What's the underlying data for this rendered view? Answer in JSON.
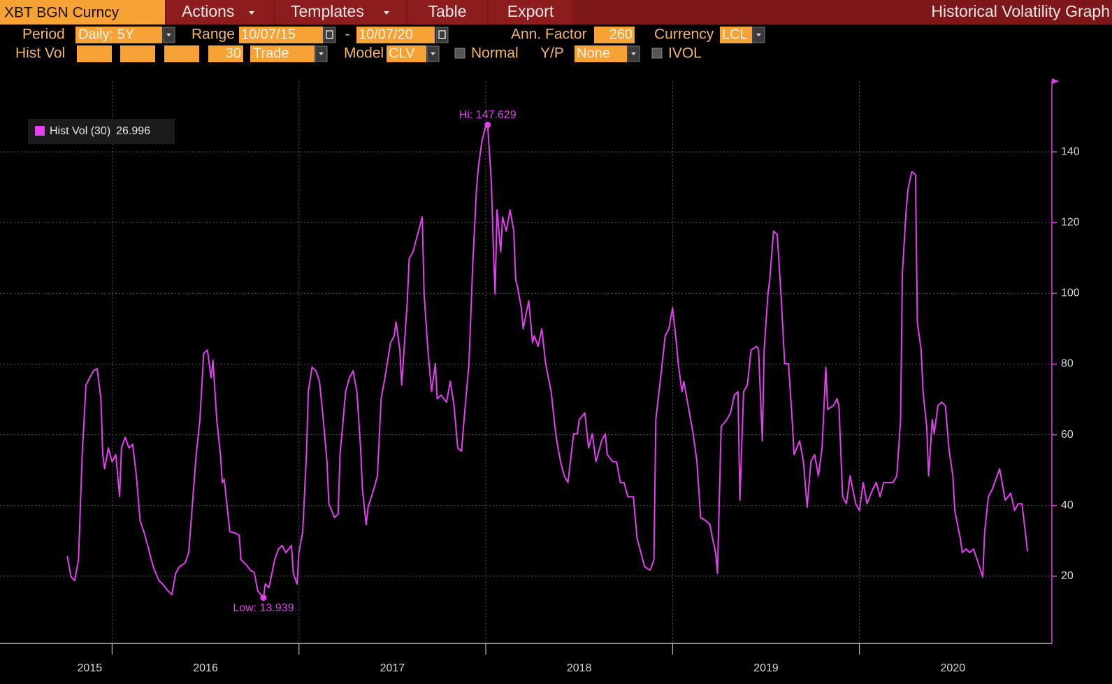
{
  "toolbar": {
    "security": "XBT BGN Curncy",
    "menus": [
      "Actions",
      "Templates",
      "Table",
      "Export"
    ],
    "screen_title": "Historical Volatility Graph"
  },
  "settings": {
    "period_label": "Period",
    "period": "Daily: 5Y",
    "range_label": "Range",
    "range_start": "10/07/15",
    "range_separator": "-",
    "range_end": "10/07/20",
    "ann_factor_label": "Ann. Factor",
    "ann_factor": 260,
    "currency_label": "Currency",
    "currency": "LCL",
    "hist_vol_label": "Hist Vol",
    "hist_vol_window": 30,
    "price_type": "Trade",
    "model_label": "Model",
    "model": "CLV",
    "normal_label": "Normal",
    "yp_label": "Y/P",
    "yp": "None",
    "ivol_label": "IVOL"
  },
  "chart_data": {
    "type": "line",
    "x": [
      2015.76,
      2015.78,
      2015.8,
      2015.82,
      2015.84,
      2015.86,
      2015.88,
      2015.9,
      2015.92,
      2015.94,
      2015.95,
      2015.96,
      2015.98,
      2016.0,
      2016.02,
      2016.04,
      2016.05,
      2016.07,
      2016.09,
      2016.11,
      2016.13,
      2016.15,
      2016.17,
      2016.19,
      2016.22,
      2016.25,
      2016.27,
      2016.3,
      2016.32,
      2016.34,
      2016.36,
      2016.39,
      2016.41,
      2016.45,
      2016.47,
      2016.49,
      2016.51,
      2016.53,
      2016.54,
      2016.56,
      2016.58,
      2016.59,
      2016.6,
      2016.62,
      2016.63,
      2016.66,
      2016.68,
      2016.69,
      2016.72,
      2016.74,
      2016.76,
      2016.78,
      2016.81,
      2016.82,
      2016.84,
      2016.87,
      2016.89,
      2016.91,
      2016.93,
      2016.96,
      2016.97,
      2016.99,
      2017.0,
      2017.02,
      2017.04,
      2017.05,
      2017.07,
      2017.09,
      2017.11,
      2017.13,
      2017.15,
      2017.16,
      2017.19,
      2017.21,
      2017.22,
      2017.25,
      2017.27,
      2017.29,
      2017.31,
      2017.33,
      2017.34,
      2017.36,
      2017.37,
      2017.4,
      2017.42,
      2017.44,
      2017.46,
      2017.49,
      2017.51,
      2017.52,
      2017.54,
      2017.55,
      2017.58,
      2017.59,
      2017.61,
      2017.64,
      2017.66,
      2017.67,
      2017.69,
      2017.71,
      2017.73,
      2017.74,
      2017.76,
      2017.79,
      2017.81,
      2017.83,
      2017.85,
      2017.87,
      2017.89,
      2017.91,
      2017.93,
      2017.95,
      2017.96,
      2017.98,
      2018.0,
      2018.01,
      2018.03,
      2018.04,
      2018.05,
      2018.06,
      2018.08,
      2018.09,
      2018.11,
      2018.13,
      2018.15,
      2018.16,
      2018.17,
      2018.19,
      2018.2,
      2018.23,
      2018.25,
      2018.26,
      2018.28,
      2018.3,
      2018.32,
      2018.35,
      2018.37,
      2018.38,
      2018.4,
      2018.42,
      2018.44,
      2018.47,
      2018.49,
      2018.5,
      2018.53,
      2018.55,
      2018.57,
      2018.59,
      2018.62,
      2018.64,
      2018.65,
      2018.68,
      2018.7,
      2018.72,
      2018.74,
      2018.76,
      2018.79,
      2018.81,
      2018.83,
      2018.85,
      2018.88,
      2018.9,
      2018.91,
      2018.94,
      2018.96,
      2018.98,
      2019.0,
      2019.02,
      2019.03,
      2019.05,
      2019.06,
      2019.09,
      2019.11,
      2019.13,
      2019.15,
      2019.18,
      2019.2,
      2019.21,
      2019.23,
      2019.24,
      2019.26,
      2019.29,
      2019.31,
      2019.33,
      2019.35,
      2019.36,
      2019.38,
      2019.4,
      2019.42,
      2019.45,
      2019.46,
      2019.48,
      2019.49,
      2019.51,
      2019.52,
      2019.54,
      2019.56,
      2019.58,
      2019.6,
      2019.62,
      2019.64,
      2019.65,
      2019.68,
      2019.7,
      2019.72,
      2019.74,
      2019.76,
      2019.78,
      2019.8,
      2019.82,
      2019.83,
      2019.86,
      2019.88,
      2019.89,
      2019.91,
      2019.93,
      2019.95,
      2019.98,
      2020.0,
      2020.02,
      2020.04,
      2020.07,
      2020.09,
      2020.11,
      2020.13,
      2020.16,
      2020.18,
      2020.2,
      2020.22,
      2020.23,
      2020.25,
      2020.26,
      2020.28,
      2020.3,
      2020.31,
      2020.33,
      2020.34,
      2020.36,
      2020.37,
      2020.39,
      2020.4,
      2020.42,
      2020.44,
      2020.46,
      2020.48,
      2020.5,
      2020.51,
      2020.54,
      2020.55,
      2020.57,
      2020.59,
      2020.61,
      2020.63,
      2020.66,
      2020.67,
      2020.69,
      2020.71,
      2020.73,
      2020.75,
      2020.77,
      2020.78,
      2020.81,
      2020.83,
      2020.85,
      2020.87,
      2020.9
    ],
    "series": [
      {
        "name": "Hist Vol (30)",
        "color": "#e43ff0",
        "values": [
          25.7,
          19.8,
          18.8,
          24.7,
          54.4,
          74.1,
          76.1,
          78.1,
          78.7,
          70.2,
          54.4,
          50.4,
          56.3,
          52.4,
          54.4,
          42.5,
          56.3,
          59.3,
          56.3,
          57.3,
          48.4,
          35.6,
          32.6,
          28.7,
          22.7,
          18.8,
          17.8,
          15.8,
          14.8,
          20.8,
          22.7,
          23.7,
          26.7,
          54.4,
          64.3,
          83.0,
          84.0,
          76.1,
          81.1,
          64.3,
          54.4,
          46.5,
          47.4,
          37.6,
          32.6,
          32.2,
          31.6,
          24.7,
          23.1,
          21.7,
          21.2,
          15.8,
          13.939,
          17.8,
          16.8,
          24.7,
          27.7,
          28.7,
          26.7,
          28.7,
          20.8,
          17.8,
          26.7,
          32.6,
          54.4,
          72.2,
          79.1,
          78.1,
          75.1,
          64.3,
          52.4,
          40.5,
          36.6,
          37.6,
          54.4,
          72.2,
          76.1,
          78.1,
          72.2,
          56.3,
          44.5,
          34.6,
          39.5,
          44.5,
          48.4,
          70.2,
          76.1,
          86.0,
          88.0,
          91.9,
          84.0,
          74.1,
          97.9,
          109.7,
          111.7,
          117.6,
          121.6,
          99.8,
          84.0,
          72.2,
          80.1,
          70.2,
          71.2,
          69.2,
          75.1,
          68.2,
          56.3,
          55.4,
          68.2,
          80.1,
          107.8,
          129.5,
          135.4,
          143.3,
          147.3,
          147.629,
          131.5,
          113.7,
          99.8,
          123.6,
          111.7,
          121.6,
          117.6,
          123.6,
          117.6,
          103.8,
          101.8,
          95.9,
          90.0,
          97.9,
          86.0,
          88.0,
          85.0,
          90.0,
          80.1,
          72.2,
          62.3,
          58.3,
          52.4,
          48.4,
          46.5,
          60.3,
          60.3,
          64.3,
          66.2,
          56.3,
          60.3,
          52.4,
          58.3,
          60.3,
          54.4,
          52.4,
          52.4,
          46.5,
          46.5,
          42.5,
          42.5,
          30.6,
          26.7,
          22.7,
          21.7,
          24.7,
          64.3,
          78.1,
          88.0,
          90.0,
          95.9,
          86.0,
          80.1,
          72.2,
          75.1,
          66.2,
          60.3,
          52.4,
          36.6,
          35.6,
          34.6,
          31.6,
          26.7,
          20.8,
          62.3,
          64.3,
          66.2,
          71.2,
          72.2,
          41.5,
          72.2,
          74.1,
          84.0,
          85.0,
          84.0,
          58.3,
          84.0,
          99.8,
          103.8,
          117.6,
          116.6,
          99.8,
          80.1,
          80.1,
          64.3,
          54.4,
          58.3,
          52.4,
          39.5,
          52.4,
          54.4,
          48.4,
          56.3,
          79.1,
          67.2,
          68.2,
          70.2,
          68.2,
          42.5,
          40.5,
          48.4,
          40.5,
          38.6,
          46.5,
          40.5,
          44.5,
          46.5,
          42.5,
          46.5,
          46.5,
          46.5,
          48.4,
          64.3,
          105.8,
          123.6,
          129.5,
          134.4,
          133.5,
          91.9,
          84.0,
          72.2,
          62.3,
          48.4,
          64.3,
          60.3,
          68.2,
          69.2,
          68.2,
          55.4,
          48.4,
          38.6,
          30.6,
          26.7,
          27.7,
          26.7,
          27.7,
          24.7,
          19.8,
          32.6,
          42.5,
          44.5,
          47.4,
          50.4,
          44.5,
          41.5,
          43.5,
          38.6,
          40.5,
          40.5,
          26.996
        ]
      }
    ],
    "annotations": [
      {
        "text": "Hi: 147.629",
        "x": 2018.01,
        "value": 147.629,
        "position": "above"
      },
      {
        "text": "Low: 13.939",
        "x": 2016.81,
        "value": 13.939,
        "position": "below"
      }
    ],
    "xlim": [
      2015.4,
      2021.03
    ],
    "xticks": [
      2015,
      2016,
      2017,
      2018,
      2019,
      2020
    ],
    "ylim": [
      1,
      160
    ],
    "yticks": [
      20,
      40,
      60,
      80,
      100,
      120,
      140
    ],
    "grid": true,
    "legend": "upper left",
    "y_axis_side": "right"
  }
}
